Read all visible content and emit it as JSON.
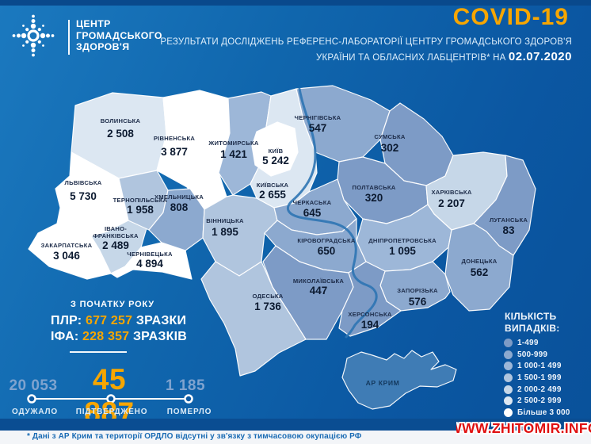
{
  "header": {
    "org_name_lines": [
      "ЦЕНТР",
      "ГРОМАДСЬКОГО",
      "ЗДОРОВ'Я"
    ],
    "title": "COVID-19",
    "subtitle_line1": "РЕЗУЛЬТАТИ ДОСЛІДЖЕНЬ РЕФЕРЕНС-ЛАБОРАТОРІЇ ЦЕНТРУ ГРОМАДСЬКОГО ЗДОРОВ'Я",
    "subtitle_line2": "УКРАЇНИ ТА ОБЛАСНИХ ЛАБЦЕНТРІВ* НА",
    "date": "02.07.2020",
    "accent_color": "#F7A600"
  },
  "map": {
    "no_data_color": "#3F7CB5",
    "regions": [
      {
        "id": "volyn",
        "name": "ВОЛИНСЬКА",
        "value": "2 508",
        "bucket": 5
      },
      {
        "id": "rivne",
        "name": "РІВНЕНСЬКА",
        "value": "3 877",
        "bucket": 6
      },
      {
        "id": "lviv",
        "name": "ЛЬВІВСЬКА",
        "value": "5 730",
        "bucket": 6
      },
      {
        "id": "zakarpattia",
        "name": "ЗАКАРПАТСЬКА",
        "value": "3 046",
        "bucket": 6
      },
      {
        "id": "ivano_frankivsk",
        "name": "ІВАНО-\nФРАНКІВСЬКА",
        "value": "2 489",
        "bucket": 4
      },
      {
        "id": "chernivtsi",
        "name": "ЧЕРНІВЕЦЬКА",
        "value": "4 894",
        "bucket": 6
      },
      {
        "id": "ternopil",
        "name": "ТЕРНОПІЛЬСЬКА",
        "value": "1 958",
        "bucket": 3
      },
      {
        "id": "khmelnytskyi",
        "name": "ХМЕЛЬНИЦЬКА",
        "value": "808",
        "bucket": 1
      },
      {
        "id": "zhytomyr",
        "name": "ЖИТОМИРСЬКА",
        "value": "1 421",
        "bucket": 2
      },
      {
        "id": "vinnytsia",
        "name": "ВІННИЦЬКА",
        "value": "1 895",
        "bucket": 3
      },
      {
        "id": "kyivska",
        "name": "КИЇВСЬКА",
        "value": "2 655",
        "bucket": 5
      },
      {
        "id": "kyiv",
        "name": "КИЇВ",
        "value": "5 242",
        "bucket": 6
      },
      {
        "id": "chernihiv",
        "name": "ЧЕРНІГІВСЬКА",
        "value": "547",
        "bucket": 1
      },
      {
        "id": "sumy",
        "name": "СУМСЬКА",
        "value": "302",
        "bucket": 0
      },
      {
        "id": "poltava",
        "name": "ПОЛТАВСЬКА",
        "value": "320",
        "bucket": 0
      },
      {
        "id": "kharkiv",
        "name": "ХАРКІВСЬКА",
        "value": "2 207",
        "bucket": 4
      },
      {
        "id": "luhansk",
        "name": "ЛУГАНСЬКА",
        "value": "83",
        "bucket": 0
      },
      {
        "id": "cherkasy",
        "name": "ЧЕРКАСЬКА",
        "value": "645",
        "bucket": 1
      },
      {
        "id": "kirovohrad",
        "name": "КІРОВОГРАДСЬКА",
        "value": "650",
        "bucket": 1
      },
      {
        "id": "dnipro",
        "name": "ДНІПРОПЕТРОВСЬКА",
        "value": "1 095",
        "bucket": 2
      },
      {
        "id": "donetsk",
        "name": "ДОНЕЦЬКА",
        "value": "562",
        "bucket": 1
      },
      {
        "id": "zaporizhzhia",
        "name": "ЗАПОРІЗЬКА",
        "value": "576",
        "bucket": 1
      },
      {
        "id": "mykolaiv",
        "name": "МИКОЛАЇВСЬКА",
        "value": "447",
        "bucket": 0
      },
      {
        "id": "odesa",
        "name": "ОДЕСЬКА",
        "value": "1 736",
        "bucket": 3
      },
      {
        "id": "kherson",
        "name": "ХЕРСОНСЬКА",
        "value": "194",
        "bucket": 0
      },
      {
        "id": "crimea",
        "name": "АР КРИМ",
        "value": "",
        "bucket": -1
      }
    ]
  },
  "samples_box": {
    "title": "З ПОЧАТКУ РОКУ",
    "rows": [
      {
        "label": "ПЛР:",
        "value": "677 257",
        "unit": "ЗРАЗКИ"
      },
      {
        "label": "ІФА:",
        "value": "228 357",
        "unit": "ЗРАЗКІВ"
      }
    ]
  },
  "totals": {
    "recovered": {
      "value": "20 053",
      "label": "ОДУЖАЛО"
    },
    "confirmed": {
      "value": "45 887",
      "label": "ПІДТВЕРДЖЕНО"
    },
    "deaths": {
      "value": "1 185",
      "label": "ПОМЕРЛО"
    }
  },
  "legend": {
    "title_lines": [
      "КІЛЬКІСТЬ",
      "ВИПАДКІВ:"
    ],
    "items": [
      {
        "label": "1-499",
        "color": "#7D9BC6"
      },
      {
        "label": "500-999",
        "color": "#8CA9CF"
      },
      {
        "label": "1 000-1 499",
        "color": "#9DB7D8"
      },
      {
        "label": "1 500-1 999",
        "color": "#B0C5DE"
      },
      {
        "label": "2 000-2 499",
        "color": "#C6D7E8"
      },
      {
        "label": "2 500-2 999",
        "color": "#DCE7F2"
      },
      {
        "label": "Більше 3 000",
        "color": "#FFFFFF"
      }
    ]
  },
  "footnote": "* Дані з АР Крим та території ОРДЛО відсутні у зв'язку з тимчасовою окупацією РФ",
  "watermark": "WWW.ZHITOMIR.INFO"
}
